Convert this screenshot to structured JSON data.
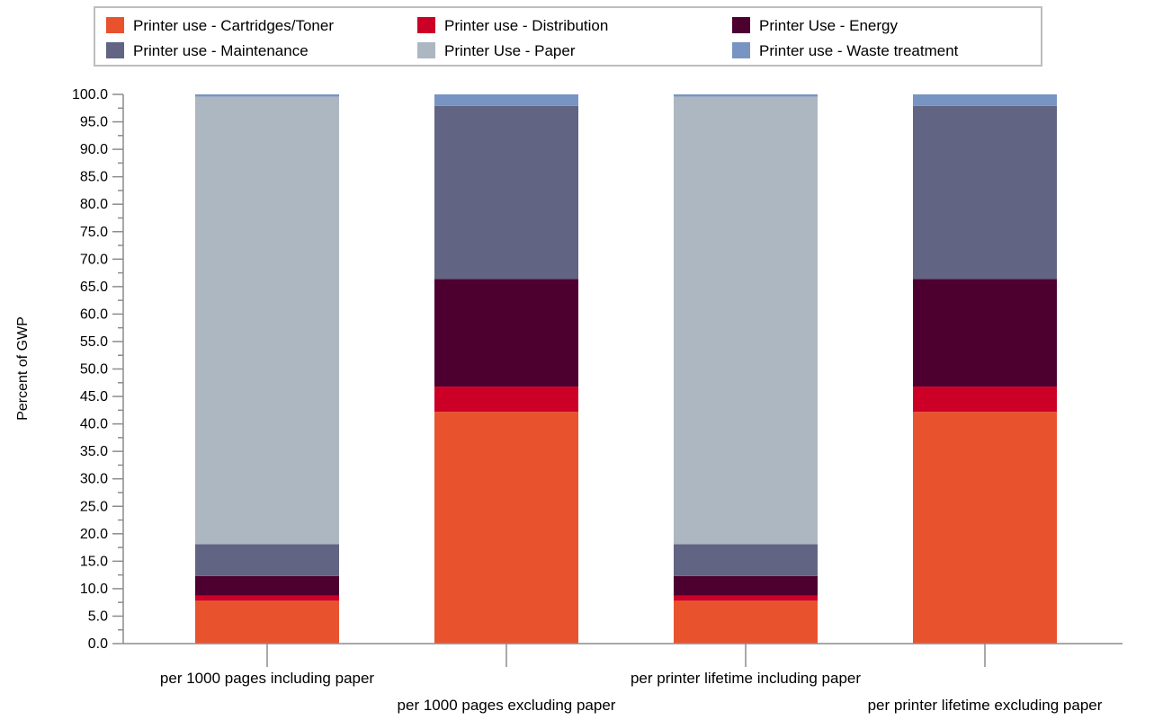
{
  "chart_data": {
    "type": "bar",
    "stacked": true,
    "ylabel": "Percent of GWP",
    "xlabel": "",
    "ylim": [
      0,
      100
    ],
    "ytick_step": 5,
    "ytick_format": "0.0",
    "legend_position": "top",
    "categories": [
      "per 1000 pages including paper",
      "per 1000 pages excluding paper",
      "per printer lifetime including paper",
      "per printer lifetime excluding paper"
    ],
    "series": [
      {
        "name": "Printer use - Cartridges/Toner",
        "color": "#e8532e",
        "values": [
          7.8,
          42.2,
          7.8,
          42.2
        ]
      },
      {
        "name": "Printer use - Distribution",
        "color": "#cc0026",
        "values": [
          0.9,
          4.6,
          0.9,
          4.6
        ]
      },
      {
        "name": "Printer Use - Energy",
        "color": "#4d0030",
        "values": [
          3.6,
          19.6,
          3.6,
          19.6
        ]
      },
      {
        "name": "Printer use - Maintenance",
        "color": "#626483",
        "values": [
          5.8,
          31.5,
          5.8,
          31.5
        ]
      },
      {
        "name": "Printer Use - Paper",
        "color": "#adb7c1",
        "values": [
          81.5,
          0.0,
          81.5,
          0.0
        ]
      },
      {
        "name": "Printer use - Waste treatment",
        "color": "#7894c2",
        "values": [
          0.4,
          2.1,
          0.4,
          2.1
        ]
      }
    ]
  }
}
